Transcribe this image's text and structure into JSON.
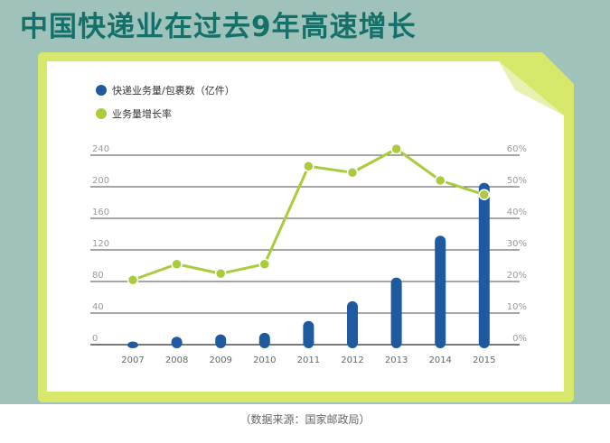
{
  "title": "中国快递业在过去9年高速增长",
  "source": "（数据来源：国家邮政局）",
  "colors": {
    "banner": "#9fc3ba",
    "title": "#16706a",
    "card_border": "#d8e86a",
    "bar": "#1f5aa0",
    "line": "#a9cb3c",
    "grid": "#4d4d4d"
  },
  "chart_data": {
    "type": "bar+line",
    "categories": [
      "2007",
      "2008",
      "2009",
      "2010",
      "2011",
      "2012",
      "2013",
      "2014",
      "2015"
    ],
    "series": [
      {
        "name": "快递业务量/包裹数（亿件）",
        "type": "bar",
        "axis": "left",
        "values": [
          4,
          10,
          13,
          15,
          30,
          55,
          85,
          138,
          205
        ]
      },
      {
        "name": "业务量增长率",
        "type": "line",
        "axis": "right",
        "values": [
          20.5,
          25.5,
          22.5,
          25.5,
          56.5,
          54.5,
          62,
          52,
          47.5
        ]
      }
    ],
    "y_left": {
      "ticks": [
        "0",
        "40",
        "80",
        "120",
        "160",
        "200",
        "240"
      ],
      "ylim": [
        0,
        240
      ]
    },
    "y_right": {
      "ticks": [
        "0%",
        "10%",
        "20%",
        "30%",
        "40%",
        "50%",
        "60%"
      ],
      "ylim": [
        0,
        60
      ]
    },
    "legend": {
      "placement": "top-left"
    },
    "grid": "horizontal"
  }
}
